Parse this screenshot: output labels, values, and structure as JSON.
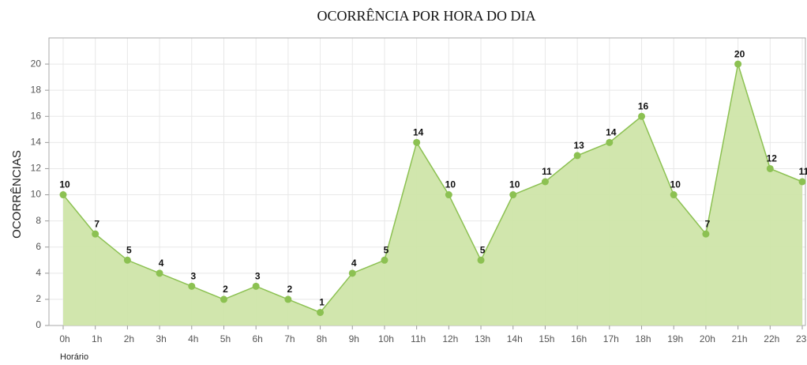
{
  "chart_data": {
    "type": "area",
    "title": "OCORRÊNCIA POR HORA DO DIA",
    "x_label": "Horário",
    "y_label": "OCORRÊNCIAS",
    "categories": [
      "0h",
      "1h",
      "2h",
      "3h",
      "4h",
      "5h",
      "6h",
      "7h",
      "8h",
      "9h",
      "10h",
      "11h",
      "12h",
      "13h",
      "14h",
      "15h",
      "16h",
      "17h",
      "18h",
      "19h",
      "20h",
      "21h",
      "22h",
      "23h"
    ],
    "values": [
      10,
      7,
      5,
      4,
      3,
      2,
      3,
      2,
      1,
      4,
      5,
      14,
      10,
      5,
      10,
      11,
      13,
      14,
      16,
      10,
      7,
      20,
      12,
      11
    ],
    "color": "#8cc152",
    "fill": "#cfe5a9",
    "ylim": [
      0,
      22
    ],
    "yticks": [
      0,
      2,
      4,
      6,
      8,
      10,
      12,
      14,
      16,
      18,
      20
    ],
    "grid": true
  }
}
